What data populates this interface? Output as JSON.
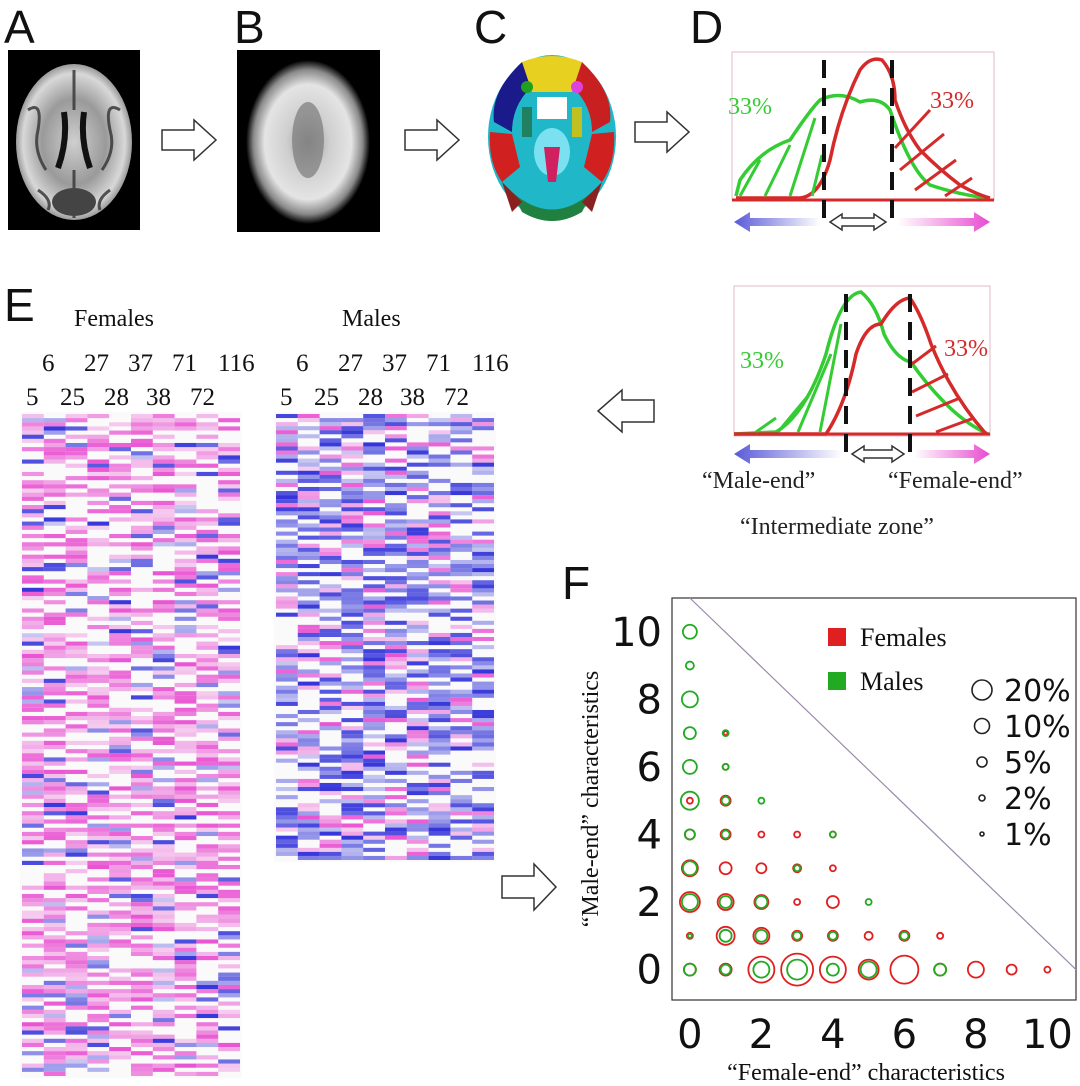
{
  "panels": {
    "a": "A",
    "b": "B",
    "c": "C",
    "d": "D",
    "e": "E",
    "f": "F"
  },
  "distribution": {
    "left_pct": "33%",
    "right_pct": "33%",
    "male_end": "“Male-end”",
    "female_end": "“Female-end”",
    "intermediate": "“Intermediate  zone”"
  },
  "heatmap": {
    "females_title": "Females",
    "males_title": "Males",
    "ticks_top": [
      "6",
      "27",
      "37",
      "71",
      "116"
    ],
    "ticks_bottom": [
      "5",
      "25",
      "28",
      "38",
      "72"
    ]
  },
  "colors": {
    "female": "#e02020",
    "male": "#22aa22",
    "pink": "#e84bd0",
    "blue": "#2a2ad8"
  },
  "chart_data": {
    "type": "scatter",
    "xlabel": "“Female-end”  characteristics",
    "ylabel": "“Male-end”  characteristics",
    "xlim": [
      -0.5,
      10.8
    ],
    "ylim": [
      -0.9,
      11
    ],
    "x_ticks": [
      "0",
      "2",
      "4",
      "6",
      "8",
      "10"
    ],
    "y_ticks": [
      "0",
      "2",
      "4",
      "6",
      "8",
      "10"
    ],
    "legend": {
      "series": [
        "Females",
        "Males"
      ],
      "sizes": [
        "20%",
        "10%",
        "5%",
        "2%",
        "1%"
      ]
    },
    "series": [
      {
        "name": "Females",
        "color": "#e02020",
        "points": [
          [
            0,
            0,
            6
          ],
          [
            1,
            0,
            6
          ],
          [
            2,
            0,
            13
          ],
          [
            3,
            0,
            16
          ],
          [
            4,
            0,
            13
          ],
          [
            5,
            0,
            10
          ],
          [
            6,
            0,
            14
          ],
          [
            7,
            0,
            6
          ],
          [
            8,
            0,
            8
          ],
          [
            9,
            0,
            5
          ],
          [
            10,
            0,
            3
          ],
          [
            0,
            1,
            3
          ],
          [
            1,
            1,
            9
          ],
          [
            2,
            1,
            8
          ],
          [
            3,
            1,
            5
          ],
          [
            4,
            1,
            5
          ],
          [
            5,
            1,
            4
          ],
          [
            6,
            1,
            5
          ],
          [
            7,
            1,
            3
          ],
          [
            0,
            2,
            10
          ],
          [
            1,
            2,
            8
          ],
          [
            2,
            2,
            7
          ],
          [
            3,
            2,
            3
          ],
          [
            4,
            2,
            6
          ],
          [
            0,
            3,
            8
          ],
          [
            1,
            3,
            6
          ],
          [
            2,
            3,
            5
          ],
          [
            3,
            3,
            4
          ],
          [
            4,
            3,
            3
          ],
          [
            0,
            4,
            5
          ],
          [
            1,
            4,
            5
          ],
          [
            2,
            4,
            3
          ],
          [
            3,
            4,
            3
          ],
          [
            4,
            4,
            3
          ],
          [
            0,
            5,
            3
          ],
          [
            1,
            5,
            5
          ],
          [
            1,
            6,
            3
          ],
          [
            1,
            7,
            2
          ]
        ]
      },
      {
        "name": "Males",
        "color": "#22aa22",
        "points": [
          [
            0,
            0,
            6
          ],
          [
            1,
            0,
            5
          ],
          [
            2,
            0,
            8
          ],
          [
            3,
            0,
            10
          ],
          [
            4,
            0,
            6
          ],
          [
            5,
            0,
            8
          ],
          [
            7,
            0,
            6
          ],
          [
            0,
            1,
            2
          ],
          [
            1,
            1,
            6
          ],
          [
            2,
            1,
            6
          ],
          [
            3,
            1,
            4
          ],
          [
            4,
            1,
            4
          ],
          [
            6,
            1,
            4
          ],
          [
            0,
            2,
            8
          ],
          [
            1,
            2,
            6
          ],
          [
            2,
            2,
            6
          ],
          [
            5,
            2,
            3
          ],
          [
            0,
            3,
            7
          ],
          [
            3,
            3,
            3
          ],
          [
            0,
            4,
            5
          ],
          [
            1,
            4,
            4
          ],
          [
            4,
            4,
            3
          ],
          [
            0,
            5,
            9
          ],
          [
            1,
            5,
            4
          ],
          [
            2,
            5,
            3
          ],
          [
            0,
            6,
            7
          ],
          [
            1,
            6,
            3
          ],
          [
            0,
            7,
            6
          ],
          [
            1,
            7,
            3
          ],
          [
            0,
            8,
            8
          ],
          [
            0,
            9,
            4
          ],
          [
            0,
            10,
            7
          ]
        ]
      }
    ]
  }
}
